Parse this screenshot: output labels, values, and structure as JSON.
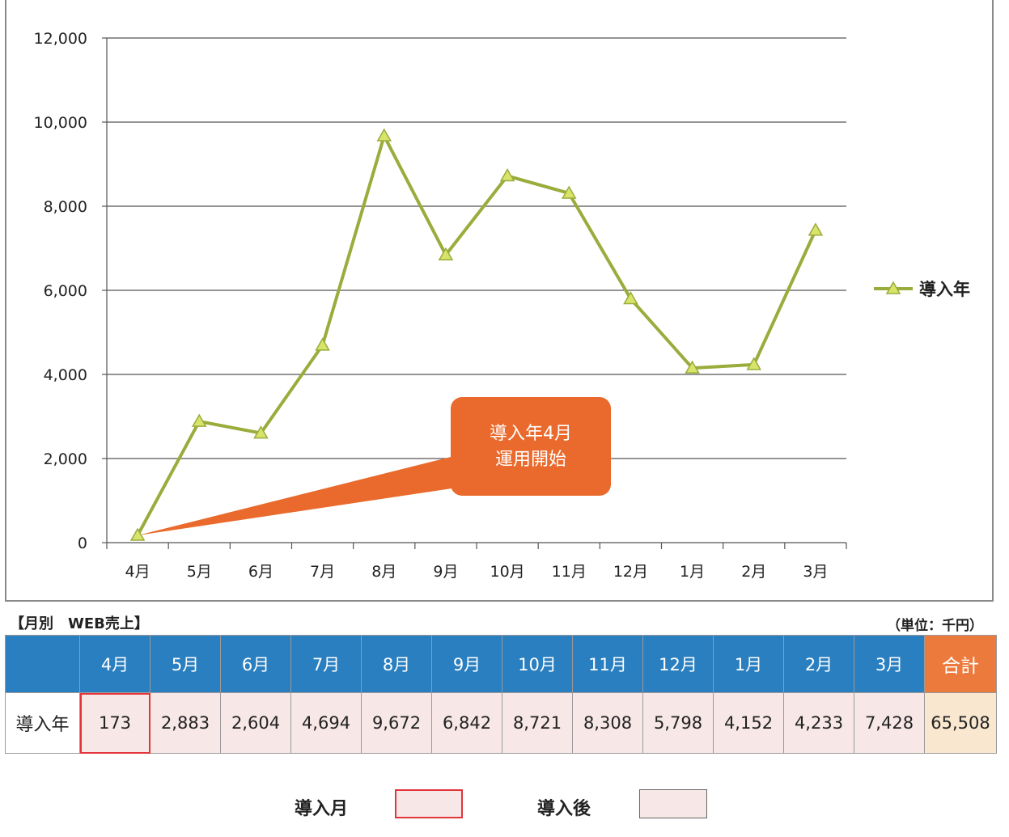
{
  "chart_data": {
    "type": "line",
    "categories": [
      "4月",
      "5月",
      "6月",
      "7月",
      "8月",
      "9月",
      "10月",
      "11月",
      "12月",
      "1月",
      "2月",
      "3月"
    ],
    "series": [
      {
        "name": "導入年",
        "values": [
          173,
          2883,
          2604,
          4694,
          9672,
          6842,
          8721,
          8308,
          5798,
          4152,
          4233,
          7428
        ],
        "color": "#9aac3c",
        "marker_color": "#d8e36a"
      }
    ],
    "ylim": [
      0,
      12000
    ],
    "yticks": [
      "0",
      "2,000",
      "4,000",
      "6,000",
      "8,000",
      "10,000",
      "12,000"
    ],
    "ytick_values": [
      0,
      2000,
      4000,
      6000,
      8000,
      10000,
      12000
    ],
    "grid": true,
    "legend": "right",
    "annotation": {
      "lines": [
        "導入年4月",
        "運用開始"
      ],
      "target_category": "4月",
      "color": "#e96a2c"
    }
  },
  "table": {
    "title": "【月別　WEB売上】",
    "unit": "（単位：千円）",
    "headers": [
      "4月",
      "5月",
      "6月",
      "7月",
      "8月",
      "9月",
      "10月",
      "11月",
      "12月",
      "1月",
      "2月",
      "3月"
    ],
    "total_header": "合計",
    "row_label": "導入年",
    "cells": [
      "173",
      "2,883",
      "2,604",
      "4,694",
      "9,672",
      "6,842",
      "8,721",
      "8,308",
      "5,798",
      "4,152",
      "4,233",
      "7,428"
    ],
    "total": "65,508"
  },
  "legend_bottom": {
    "month_label": "導入月",
    "after_label": "導入後"
  },
  "colors": {
    "header_blue": "#2a7fc0",
    "total_orange": "#ec7a3c",
    "highlight_red": "#e2343a",
    "cell_pink": "#f7e7e7"
  }
}
